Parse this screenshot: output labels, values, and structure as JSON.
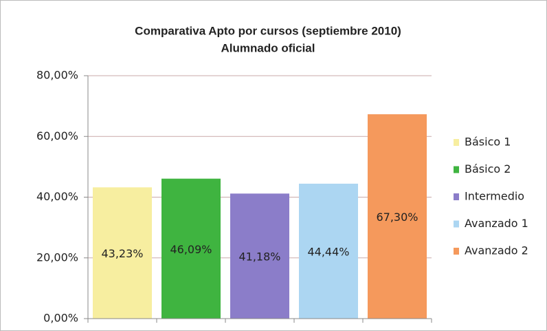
{
  "chart_data": {
    "type": "bar",
    "title": "Comparativa Apto por cursos (septiembre 2010)",
    "subtitle": "Alumnado oficial",
    "series": [
      {
        "name": "Básico 1",
        "color": "#f7eea0",
        "values": [
          43.23
        ],
        "value_labels": [
          "43,23%"
        ]
      },
      {
        "name": "Básico 2",
        "color": "#3fb440",
        "values": [
          46.09
        ],
        "value_labels": [
          "46,09%"
        ]
      },
      {
        "name": "Intermedio",
        "color": "#8b7dc9",
        "values": [
          41.18
        ],
        "value_labels": [
          "41,18%"
        ]
      },
      {
        "name": "Avanzado 1",
        "color": "#acd6f2",
        "values": [
          44.44
        ],
        "value_labels": [
          "44,44%"
        ]
      },
      {
        "name": "Avanzado 2",
        "color": "#f5995c",
        "values": [
          67.3
        ],
        "value_labels": [
          "67,30%"
        ]
      }
    ],
    "ylim": [
      0,
      80
    ],
    "yticks": [
      {
        "value": 0,
        "label": "0,00%"
      },
      {
        "value": 20,
        "label": "20,00%"
      },
      {
        "value": 40,
        "label": "40,00%"
      },
      {
        "value": 60,
        "label": "60,00%"
      },
      {
        "value": 80,
        "label": "80,00%"
      }
    ],
    "grid": true,
    "legend": "right"
  }
}
